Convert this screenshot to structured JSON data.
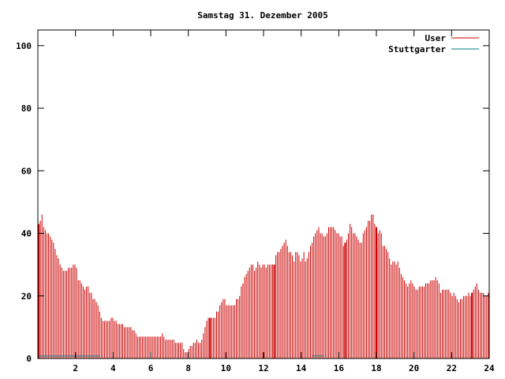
{
  "chart_data": {
    "type": "bar",
    "title": "Samstag 31. Dezember 2005",
    "xlabel": "",
    "ylabel": "",
    "xlim": [
      0,
      24
    ],
    "ylim": [
      0,
      105
    ],
    "x_ticks": [
      "2",
      "4",
      "6",
      "8",
      "10",
      "12",
      "14",
      "16",
      "18",
      "20",
      "22",
      "24"
    ],
    "x_tick_values": [
      2,
      4,
      6,
      8,
      10,
      12,
      14,
      16,
      18,
      20,
      22,
      24
    ],
    "y_ticks": [
      "0",
      "20",
      "40",
      "60",
      "80",
      "100"
    ],
    "y_tick_values": [
      0,
      20,
      40,
      60,
      80,
      100
    ],
    "grid": false,
    "legend_position": "top-right",
    "series": [
      {
        "name": "User",
        "color": "#cc0000",
        "style": "impulses",
        "values": [
          43,
          44,
          46,
          42,
          41,
          40,
          40,
          39,
          38,
          37,
          35,
          33,
          32,
          30,
          29,
          28,
          28,
          28,
          29,
          29,
          29,
          30,
          30,
          29,
          25,
          25,
          24,
          23,
          22,
          23,
          23,
          21,
          21,
          19,
          19,
          18,
          17,
          15,
          13,
          12,
          12,
          12,
          12,
          12,
          13,
          13,
          12,
          12,
          11,
          11,
          11,
          11,
          10,
          10,
          10,
          10,
          10,
          9,
          9,
          8,
          7,
          7,
          7,
          7,
          7,
          7,
          7,
          7,
          7,
          7,
          7,
          7,
          7,
          7,
          7,
          8,
          7,
          6,
          6,
          6,
          6,
          6,
          6,
          5,
          5,
          5,
          5,
          5,
          3,
          2,
          2,
          3,
          4,
          4,
          5,
          5,
          6,
          5,
          5,
          6,
          8,
          10,
          12,
          13,
          13,
          13,
          13,
          13,
          15,
          15,
          17,
          18,
          19,
          19,
          17,
          17,
          17,
          17,
          17,
          17,
          19,
          19,
          20,
          23,
          24,
          26,
          27,
          28,
          29,
          30,
          30,
          28,
          29,
          31,
          30,
          29,
          30,
          30,
          29,
          30,
          30,
          30,
          30,
          30,
          33,
          34,
          34,
          35,
          36,
          37,
          38,
          36,
          34,
          34,
          33,
          31,
          34,
          34,
          33,
          31,
          32,
          34,
          31,
          32,
          34,
          36,
          37,
          39,
          40,
          41,
          42,
          40,
          40,
          39,
          39,
          40,
          42,
          42,
          42,
          42,
          41,
          40,
          40,
          39,
          39,
          36,
          37,
          38,
          40,
          43,
          42,
          40,
          40,
          39,
          38,
          37,
          37,
          40,
          41,
          42,
          44,
          44,
          46,
          46,
          43,
          42,
          40,
          41,
          40,
          36,
          36,
          35,
          34,
          32,
          30,
          31,
          31,
          30,
          31,
          29,
          27,
          26,
          25,
          24,
          23,
          24,
          25,
          24,
          23,
          22,
          22,
          23,
          23,
          23,
          23,
          24,
          24,
          24,
          25,
          25,
          25,
          26,
          25,
          24,
          21,
          22,
          22,
          22,
          22,
          22,
          21,
          20,
          21,
          20,
          19,
          18,
          19,
          19,
          20,
          20,
          20,
          21,
          20,
          21,
          22,
          23,
          24,
          22,
          21,
          21,
          21,
          20,
          20,
          21
        ],
        "highlight_bars": [
          0,
          104,
          143,
          186,
          205,
          263
        ]
      },
      {
        "name": "Stuttgarter",
        "color": "#008080",
        "segments": [
          {
            "x_start": 0.0,
            "x_end": 3.3,
            "y": 0.8
          },
          {
            "x_start": 14.6,
            "x_end": 15.2,
            "y": 0.8
          }
        ]
      }
    ]
  }
}
